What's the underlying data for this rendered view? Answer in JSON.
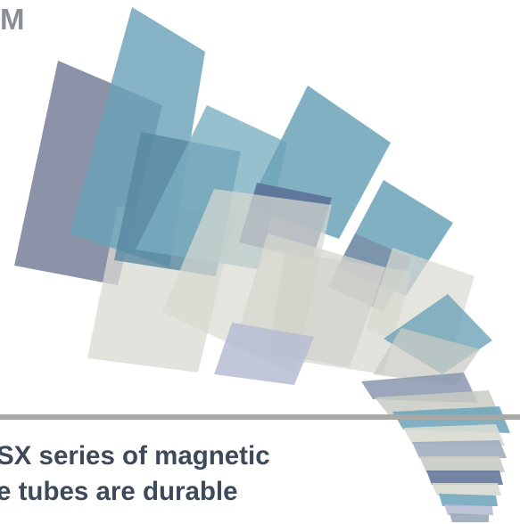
{
  "brand": {
    "fragment": "M"
  },
  "headline": {
    "line1": "SX series of magnetic",
    "line2": "e tubes are durable"
  },
  "colors": {
    "text_dark": "#3d4a5a",
    "text_gray": "#8a8f96",
    "divider": "#a9aaa8",
    "slate": "#7c849c",
    "steel_blue": "#6ba2b8",
    "deep_blue": "#5a6e94",
    "pale_gray": "#d8dad2",
    "lavender": "#b7bcd4"
  }
}
